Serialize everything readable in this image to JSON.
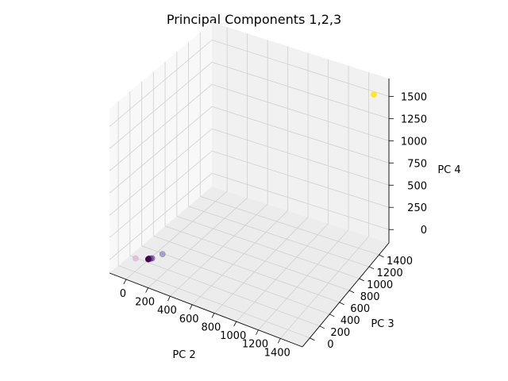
{
  "chart_data": {
    "type": "scatter",
    "projection": "3d",
    "title": "Principal Components 1,2,3",
    "xlabel": "PC 2",
    "ylabel": "PC 3",
    "zlabel": "PC 4",
    "xlim": [
      -150,
      1600
    ],
    "ylim": [
      -150,
      1600
    ],
    "zlim": [
      -150,
      1700
    ],
    "xticks": [
      0,
      200,
      400,
      600,
      800,
      1000,
      1200,
      1400
    ],
    "yticks": [
      0,
      200,
      400,
      600,
      800,
      1000,
      1200,
      1400
    ],
    "zticks": [
      0,
      250,
      500,
      750,
      1000,
      1250,
      1500
    ],
    "grid": true,
    "colormap": "viridis",
    "points": [
      {
        "x": 5,
        "y": 5,
        "z": 0,
        "color": "#d9a8d9",
        "alpha": 0.6
      },
      {
        "x": 100,
        "y": 60,
        "z": 10,
        "color": "#3b0f4f",
        "alpha": 1.0
      },
      {
        "x": 110,
        "y": 70,
        "z": 10,
        "color": "#5c2a78",
        "alpha": 0.7
      },
      {
        "x": 120,
        "y": 75,
        "z": 15,
        "color": "#6a4a9c",
        "alpha": 0.6
      },
      {
        "x": 95,
        "y": 55,
        "z": 5,
        "color": "#440154",
        "alpha": 1.0
      },
      {
        "x": 160,
        "y": 180,
        "z": 20,
        "color": "#7b6fb5",
        "alpha": 0.6
      },
      {
        "x": 1500,
        "y": 1500,
        "z": 1550,
        "color": "#fde725",
        "alpha": 1.0
      }
    ]
  }
}
